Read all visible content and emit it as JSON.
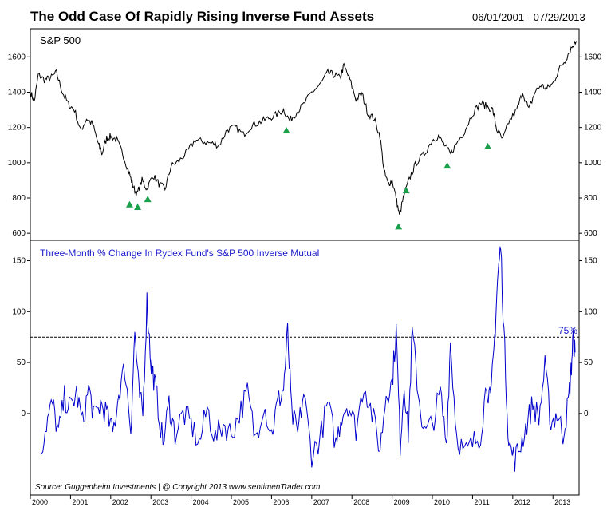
{
  "header": {
    "title": "The Odd Case Of Rapidly Rising Inverse Fund Assets",
    "date_range": "06/01/2001 - 07/29/2013"
  },
  "colors": {
    "price_line": "#000000",
    "fund_line": "#0000cc",
    "marker": "#1aa04a",
    "threshold_line": "#000000",
    "label_blue": "#1a1acc"
  },
  "footer": {
    "source": "Source:  Guggenheim Investments   |   @ Copyright 2013   www.sentimenTrader.com"
  },
  "chart_data": [
    {
      "type": "line",
      "title": "S&P 500",
      "ylim": [
        560,
        1760
      ],
      "yticks": [
        600,
        800,
        1000,
        1200,
        1400,
        1600
      ],
      "xlim": [
        2000.0,
        2013.65
      ],
      "series": [
        {
          "name": "S&P 500",
          "x": [
            2000.0,
            2000.1,
            2000.2,
            2000.35,
            2000.5,
            2000.65,
            2000.8,
            2000.95,
            2001.1,
            2001.25,
            2001.4,
            2001.55,
            2001.7,
            2001.78,
            2001.9,
            2002.0,
            2002.15,
            2002.3,
            2002.45,
            2002.55,
            2002.65,
            2002.78,
            2002.9,
            2003.05,
            2003.2,
            2003.35,
            2003.5,
            2003.7,
            2003.9,
            2004.1,
            2004.3,
            2004.5,
            2004.7,
            2004.9,
            2005.1,
            2005.3,
            2005.5,
            2005.7,
            2005.9,
            2006.1,
            2006.3,
            2006.45,
            2006.6,
            2006.8,
            2007.0,
            2007.2,
            2007.4,
            2007.55,
            2007.7,
            2007.8,
            2007.95,
            2008.1,
            2008.25,
            2008.4,
            2008.55,
            2008.7,
            2008.8,
            2008.9,
            2009.0,
            2009.1,
            2009.18,
            2009.3,
            2009.45,
            2009.6,
            2009.8,
            2010.0,
            2010.15,
            2010.3,
            2010.45,
            2010.6,
            2010.8,
            2011.0,
            2011.2,
            2011.35,
            2011.5,
            2011.6,
            2011.75,
            2011.9,
            2012.1,
            2012.25,
            2012.4,
            2012.55,
            2012.7,
            2012.85,
            2013.0,
            2013.15,
            2013.3,
            2013.45,
            2013.58
          ],
          "values": [
            1400,
            1350,
            1500,
            1470,
            1480,
            1510,
            1400,
            1330,
            1300,
            1180,
            1250,
            1220,
            1100,
            1050,
            1140,
            1150,
            1130,
            1050,
            950,
            870,
            820,
            900,
            850,
            930,
            880,
            850,
            980,
            1010,
            1060,
            1130,
            1120,
            1110,
            1100,
            1190,
            1200,
            1160,
            1210,
            1230,
            1250,
            1270,
            1300,
            1240,
            1280,
            1330,
            1400,
            1440,
            1510,
            1500,
            1480,
            1550,
            1470,
            1360,
            1390,
            1280,
            1250,
            1150,
            950,
            880,
            900,
            800,
            700,
            820,
            920,
            1000,
            1050,
            1130,
            1150,
            1100,
            1050,
            1110,
            1180,
            1280,
            1340,
            1320,
            1300,
            1190,
            1130,
            1230,
            1300,
            1400,
            1300,
            1400,
            1440,
            1420,
            1450,
            1530,
            1580,
            1650,
            1690
          ]
        }
      ],
      "markers": {
        "x": [
          2002.47,
          2002.67,
          2002.92,
          2006.37,
          2009.16,
          2009.35,
          2010.37,
          2011.38
        ],
        "values": [
          765,
          750,
          795,
          1185,
          640,
          845,
          985,
          1095
        ]
      }
    },
    {
      "type": "line",
      "title": "Three-Month % Change In Rydex Fund's S&P 500 Inverse Mutual",
      "ylim": [
        -80,
        170
      ],
      "yticks": [
        0,
        50,
        100,
        150
      ],
      "xlim": [
        2000.0,
        2013.65
      ],
      "threshold": {
        "value": 75,
        "label": "75%"
      },
      "series": [
        {
          "name": "Three-Month % Change",
          "x": [
            2000.25,
            2000.4,
            2000.55,
            2000.7,
            2000.85,
            2001.0,
            2001.15,
            2001.3,
            2001.45,
            2001.6,
            2001.75,
            2001.9,
            2002.05,
            2002.2,
            2002.35,
            2002.5,
            2002.6,
            2002.7,
            2002.8,
            2002.9,
            2003.0,
            2003.05,
            2003.15,
            2003.3,
            2003.45,
            2003.6,
            2003.8,
            2004.0,
            2004.2,
            2004.4,
            2004.6,
            2004.8,
            2005.0,
            2005.2,
            2005.4,
            2005.6,
            2005.8,
            2006.0,
            2006.15,
            2006.3,
            2006.4,
            2006.5,
            2006.65,
            2006.8,
            2007.0,
            2007.2,
            2007.4,
            2007.6,
            2007.75,
            2007.9,
            2008.1,
            2008.3,
            2008.5,
            2008.7,
            2008.85,
            2009.0,
            2009.1,
            2009.2,
            2009.3,
            2009.4,
            2009.5,
            2009.65,
            2009.8,
            2010.0,
            2010.2,
            2010.35,
            2010.45,
            2010.6,
            2010.8,
            2011.0,
            2011.2,
            2011.35,
            2011.45,
            2011.55,
            2011.62,
            2011.7,
            2011.8,
            2011.9,
            2012.05,
            2012.2,
            2012.35,
            2012.5,
            2012.65,
            2012.8,
            2012.95,
            2013.1,
            2013.25,
            2013.38,
            2013.45,
            2013.5,
            2013.55
          ],
          "values": [
            -40,
            -10,
            10,
            -20,
            15,
            5,
            20,
            -10,
            25,
            -5,
            10,
            0,
            -20,
            20,
            45,
            -15,
            80,
            20,
            0,
            110,
            50,
            40,
            15,
            -30,
            10,
            -20,
            0,
            -10,
            -30,
            5,
            -25,
            -10,
            -20,
            0,
            20,
            -25,
            10,
            -20,
            10,
            25,
            80,
            0,
            -20,
            20,
            -40,
            -25,
            10,
            -30,
            0,
            10,
            -15,
            30,
            0,
            -35,
            20,
            30,
            82,
            -30,
            30,
            -20,
            80,
            20,
            -20,
            -10,
            20,
            -30,
            70,
            -20,
            -40,
            -30,
            -20,
            30,
            10,
            75,
            130,
            165,
            60,
            -30,
            -45,
            -30,
            -10,
            10,
            -5,
            45,
            -10,
            0,
            -20,
            10,
            40,
            75,
            60
          ]
        }
      ],
      "footer_xticks": [
        "2000",
        "2001",
        "2002",
        "2003",
        "2004",
        "2005",
        "2006",
        "2007",
        "2008",
        "2009",
        "2010",
        "2011",
        "2012",
        "2013"
      ]
    }
  ]
}
